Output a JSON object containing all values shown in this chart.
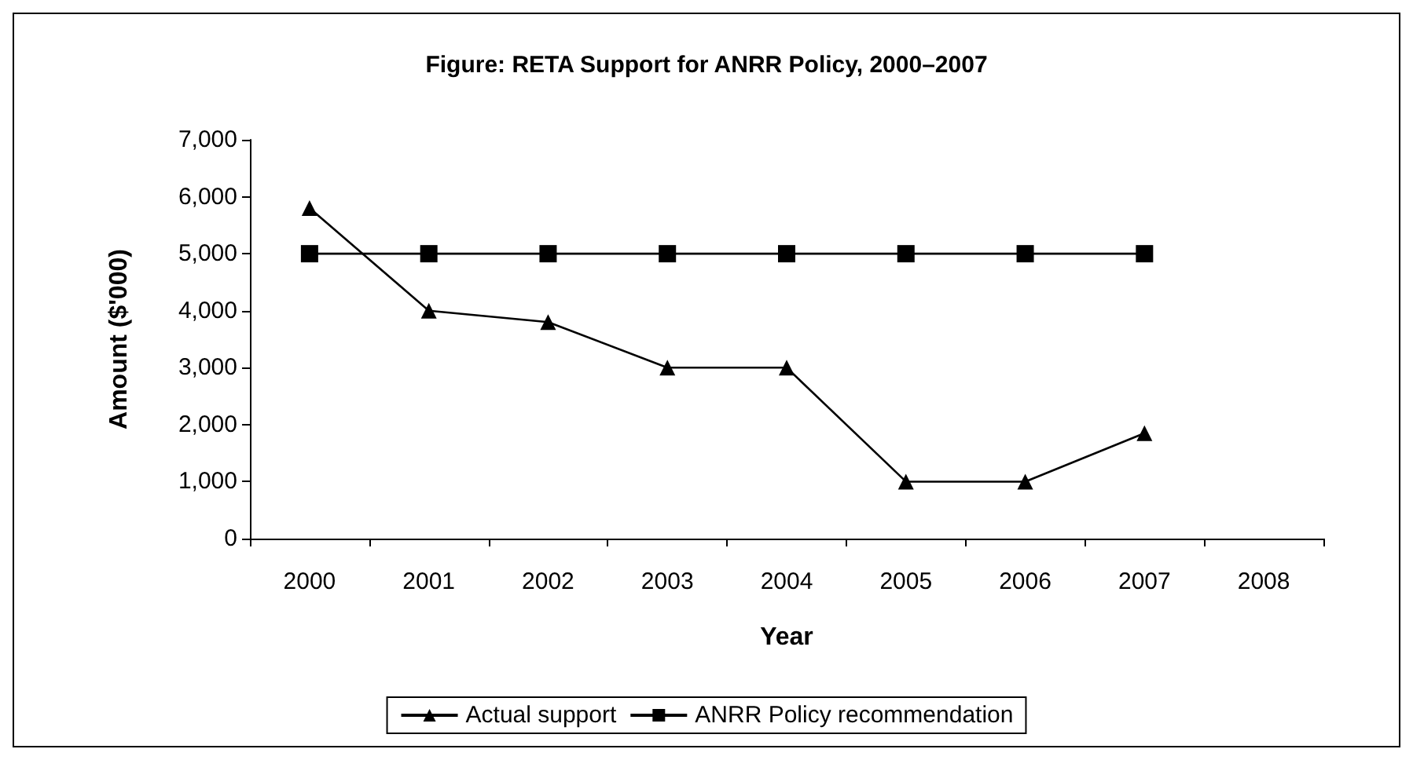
{
  "chart_data": {
    "type": "line",
    "title": "Figure: RETA Support for ANRR Policy, 2000–2007",
    "xlabel": "Year",
    "ylabel": "Amount ($'000)",
    "categories": [
      "2000",
      "2001",
      "2002",
      "2003",
      "2004",
      "2005",
      "2006",
      "2007",
      "2008"
    ],
    "series": [
      {
        "name": "Actual support",
        "color": "#000000",
        "marker": "triangle",
        "values": [
          5800,
          4000,
          3800,
          3000,
          3000,
          1000,
          1000,
          1850,
          null
        ]
      },
      {
        "name": "ANRR Policy recommendation",
        "color": "#000000",
        "marker": "square",
        "values": [
          5000,
          5000,
          5000,
          5000,
          5000,
          5000,
          5000,
          5000,
          null
        ]
      }
    ],
    "ylim": [
      0,
      7000
    ],
    "yticks": [
      0,
      {
        "value": 1000,
        "label": "1,000"
      },
      {
        "value": 2000,
        "label": "2,000"
      },
      {
        "value": 3000,
        "label": "3,000"
      },
      {
        "value": 4000,
        "label": "4,000"
      },
      {
        "value": 5000,
        "label": "5,000"
      },
      {
        "value": 6000,
        "label": "6,000"
      },
      {
        "value": 7000,
        "label": "7,000"
      }
    ],
    "grid": false,
    "legend": "bottom",
    "line_style": "solid"
  }
}
